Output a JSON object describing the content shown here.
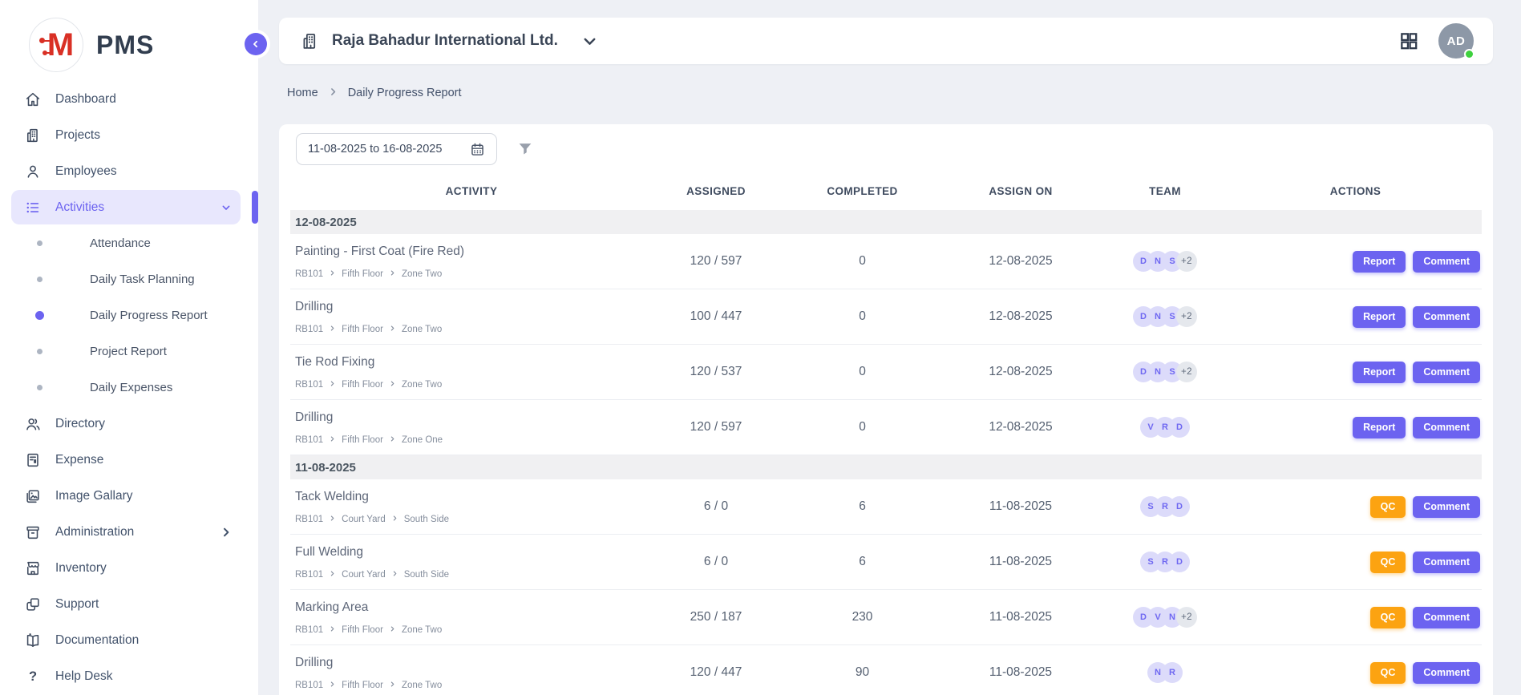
{
  "app": {
    "logo_monogram": "M",
    "logo_text": "PMS"
  },
  "sidebar": {
    "items": [
      {
        "id": "dashboard",
        "label": "Dashboard",
        "icon": "home"
      },
      {
        "id": "projects",
        "label": "Projects",
        "icon": "building"
      },
      {
        "id": "employees",
        "label": "Employees",
        "icon": "user"
      },
      {
        "id": "activities",
        "label": "Activities",
        "icon": "list",
        "active": true,
        "expanded": true,
        "children": [
          {
            "id": "attendance",
            "label": "Attendance"
          },
          {
            "id": "daily-task-planning",
            "label": "Daily Task Planning"
          },
          {
            "id": "daily-progress-report",
            "label": "Daily Progress Report",
            "active": true
          },
          {
            "id": "project-report",
            "label": "Project Report"
          },
          {
            "id": "daily-expenses",
            "label": "Daily Expenses"
          }
        ]
      },
      {
        "id": "directory",
        "label": "Directory",
        "icon": "people"
      },
      {
        "id": "expense",
        "label": "Expense",
        "icon": "receipt"
      },
      {
        "id": "image-gallary",
        "label": "Image Gallary",
        "icon": "image"
      },
      {
        "id": "administration",
        "label": "Administration",
        "icon": "archive",
        "has_submenu": true
      },
      {
        "id": "inventory",
        "label": "Inventory",
        "icon": "store"
      },
      {
        "id": "support",
        "label": "Support",
        "icon": "copy"
      },
      {
        "id": "documentation",
        "label": "Documentation",
        "icon": "book"
      },
      {
        "id": "help-desk",
        "label": "Help Desk",
        "icon": "help"
      }
    ]
  },
  "header": {
    "company": "Raja Bahadur International Ltd.",
    "avatar_initials": "AD",
    "status": "online"
  },
  "breadcrumb": {
    "items": [
      "Home",
      "Daily Progress Report"
    ]
  },
  "filters": {
    "date_range": "11-08-2025 to 16-08-2025"
  },
  "table": {
    "columns": [
      "ACTIVITY",
      "ASSIGNED",
      "COMPLETED",
      "ASSIGN ON",
      "TEAM",
      "ACTIONS"
    ],
    "groups": [
      {
        "date": "12-08-2025",
        "rows": [
          {
            "activity": "Painting - First Coat (Fire Red)",
            "path": [
              "RB101",
              "Fifth Floor",
              "Zone Two"
            ],
            "assigned": "120 / 597",
            "completed": "0",
            "assign_on": "12-08-2025",
            "team": [
              "D",
              "N",
              "S"
            ],
            "team_extra": "+2",
            "actions": [
              {
                "label": "Report",
                "style": "indigo"
              },
              {
                "label": "Comment",
                "style": "indigo"
              }
            ]
          },
          {
            "activity": "Drilling",
            "path": [
              "RB101",
              "Fifth Floor",
              "Zone Two"
            ],
            "assigned": "100 / 447",
            "completed": "0",
            "assign_on": "12-08-2025",
            "team": [
              "D",
              "N",
              "S"
            ],
            "team_extra": "+2",
            "actions": [
              {
                "label": "Report",
                "style": "indigo"
              },
              {
                "label": "Comment",
                "style": "indigo"
              }
            ]
          },
          {
            "activity": "Tie Rod Fixing",
            "path": [
              "RB101",
              "Fifth Floor",
              "Zone Two"
            ],
            "assigned": "120 / 537",
            "completed": "0",
            "assign_on": "12-08-2025",
            "team": [
              "D",
              "N",
              "S"
            ],
            "team_extra": "+2",
            "actions": [
              {
                "label": "Report",
                "style": "indigo"
              },
              {
                "label": "Comment",
                "style": "indigo"
              }
            ]
          },
          {
            "activity": "Drilling",
            "path": [
              "RB101",
              "Fifth Floor",
              "Zone One"
            ],
            "assigned": "120 / 597",
            "completed": "0",
            "assign_on": "12-08-2025",
            "team": [
              "V",
              "R",
              "D"
            ],
            "actions": [
              {
                "label": "Report",
                "style": "indigo"
              },
              {
                "label": "Comment",
                "style": "indigo"
              }
            ]
          }
        ]
      },
      {
        "date": "11-08-2025",
        "rows": [
          {
            "activity": "Tack Welding",
            "path": [
              "RB101",
              "Court Yard",
              "South Side"
            ],
            "assigned": "6 / 0",
            "completed": "6",
            "assign_on": "11-08-2025",
            "team": [
              "S",
              "R",
              "D"
            ],
            "actions": [
              {
                "label": "QC",
                "style": "orange"
              },
              {
                "label": "Comment",
                "style": "indigo"
              }
            ]
          },
          {
            "activity": "Full Welding",
            "path": [
              "RB101",
              "Court Yard",
              "South Side"
            ],
            "assigned": "6 / 0",
            "completed": "6",
            "assign_on": "11-08-2025",
            "team": [
              "S",
              "R",
              "D"
            ],
            "actions": [
              {
                "label": "QC",
                "style": "orange"
              },
              {
                "label": "Comment",
                "style": "indigo"
              }
            ]
          },
          {
            "activity": "Marking Area",
            "path": [
              "RB101",
              "Fifth Floor",
              "Zone Two"
            ],
            "assigned": "250 / 187",
            "completed": "230",
            "assign_on": "11-08-2025",
            "team": [
              "D",
              "V",
              "N"
            ],
            "team_extra": "+2",
            "actions": [
              {
                "label": "QC",
                "style": "orange"
              },
              {
                "label": "Comment",
                "style": "indigo"
              }
            ]
          },
          {
            "activity": "Drilling",
            "path": [
              "RB101",
              "Fifth Floor",
              "Zone Two"
            ],
            "assigned": "120 / 447",
            "completed": "90",
            "assign_on": "11-08-2025",
            "team": [
              "N",
              "R"
            ],
            "actions": [
              {
                "label": "QC",
                "style": "orange"
              },
              {
                "label": "Comment",
                "style": "indigo"
              }
            ]
          }
        ]
      }
    ]
  },
  "colors": {
    "accent": "#6c63f0",
    "accent_soft": "#e8e7fd",
    "qc_orange": "#fca311",
    "logo_red": "#d93025",
    "online_green": "#3ed13e",
    "avatar_gray": "#8d98a7",
    "page_bg": "#eef0f5"
  }
}
